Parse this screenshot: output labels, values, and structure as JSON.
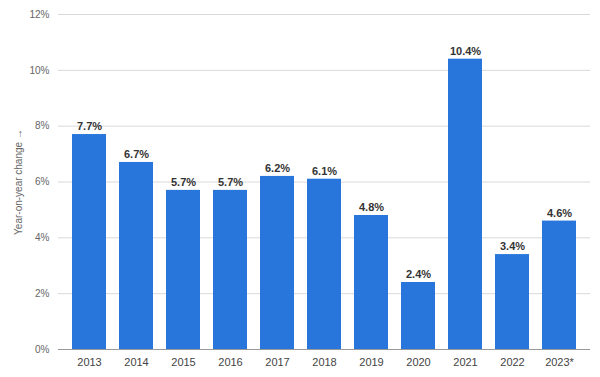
{
  "chart_data": {
    "type": "bar",
    "y_label": "Year-on-year change",
    "categories": [
      "2013",
      "2014",
      "2015",
      "2016",
      "2017",
      "2018",
      "2019",
      "2020",
      "2021",
      "2022",
      "2023*"
    ],
    "values": [
      7.7,
      6.7,
      5.7,
      5.7,
      6.2,
      6.1,
      4.8,
      2.4,
      10.4,
      3.4,
      4.6
    ],
    "value_labels": [
      "7.7%",
      "6.7%",
      "5.7%",
      "5.7%",
      "6.2%",
      "6.1%",
      "4.8%",
      "2.4%",
      "10.4%",
      "3.4%",
      "4.6%"
    ],
    "color": "#2876dc",
    "ylim": [
      0,
      12
    ],
    "yticks": [
      {
        "value": 0,
        "label": "0%"
      },
      {
        "value": 2,
        "label": "2%"
      },
      {
        "value": 4,
        "label": "4%"
      },
      {
        "value": 6,
        "label": "6%"
      },
      {
        "value": 8,
        "label": "8%"
      },
      {
        "value": 10,
        "label": "10%"
      },
      {
        "value": 12,
        "label": "12%"
      }
    ],
    "grid": true,
    "data_labels": true
  }
}
